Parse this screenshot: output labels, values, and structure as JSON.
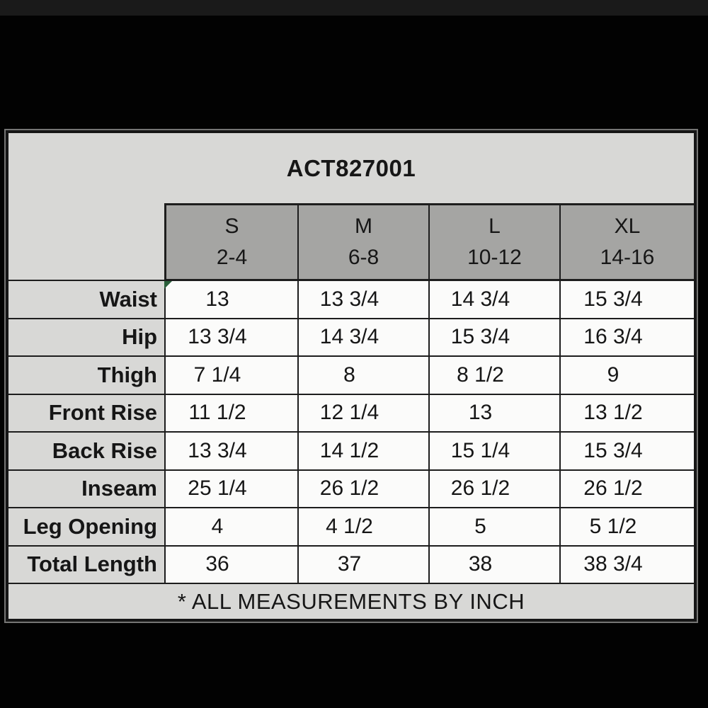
{
  "table": {
    "title": "ACT827001",
    "footnote": "* ALL MEASUREMENTS BY INCH",
    "columns": [
      {
        "size": "S",
        "range": "2-4"
      },
      {
        "size": "M",
        "range": "6-8"
      },
      {
        "size": "L",
        "range": "10-12"
      },
      {
        "size": "XL",
        "range": "14-16"
      }
    ],
    "rows": [
      {
        "label": "Waist",
        "values": [
          "13",
          "13 3/4",
          "14 3/4",
          "15 3/4"
        ]
      },
      {
        "label": "Hip",
        "values": [
          "13 3/4",
          "14 3/4",
          "15 3/4",
          "16 3/4"
        ]
      },
      {
        "label": "Thigh",
        "values": [
          "7 1/4",
          "8",
          "8 1/2",
          "9"
        ]
      },
      {
        "label": "Front Rise",
        "values": [
          "11 1/2",
          "12 1/4",
          "13",
          "13 1/2"
        ]
      },
      {
        "label": "Back Rise",
        "values": [
          "13 3/4",
          "14 1/2",
          "15 1/4",
          "15 3/4"
        ]
      },
      {
        "label": "Inseam",
        "values": [
          "25 1/4",
          "26 1/2",
          "26 1/2",
          "26 1/2"
        ]
      },
      {
        "label": "Leg Opening",
        "values": [
          "4",
          "4 1/2",
          "5",
          "5 1/2"
        ]
      },
      {
        "label": "Total Length",
        "values": [
          "36",
          "37",
          "38",
          "38 3/4"
        ]
      }
    ],
    "units_note": "INCH",
    "colors": {
      "page_background": "#020202",
      "panel_background": "#d8d8d6",
      "header_background": "#a5a5a3",
      "cell_background": "#fbfbfa",
      "grid_border": "#1d1d1d",
      "text": "#161616",
      "corner_marker": "#2a5f3a"
    }
  },
  "chart_data": {
    "type": "table",
    "title": "ACT827001",
    "columns": [
      "S 2-4",
      "M 6-8",
      "L 10-12",
      "XL 14-16"
    ],
    "rows": [
      "Waist",
      "Hip",
      "Thigh",
      "Front Rise",
      "Back Rise",
      "Inseam",
      "Leg Opening",
      "Total Length"
    ],
    "values": [
      [
        "13",
        "13 3/4",
        "14 3/4",
        "15 3/4"
      ],
      [
        "13 3/4",
        "14 3/4",
        "15 3/4",
        "16 3/4"
      ],
      [
        "7 1/4",
        "8",
        "8 1/2",
        "9"
      ],
      [
        "11 1/2",
        "12 1/4",
        "13",
        "13 1/2"
      ],
      [
        "13 3/4",
        "14 1/2",
        "15 1/4",
        "15 3/4"
      ],
      [
        "25 1/4",
        "26 1/2",
        "26 1/2",
        "26 1/2"
      ],
      [
        "4",
        "4 1/2",
        "5",
        "5 1/2"
      ],
      [
        "36",
        "37",
        "38",
        "38 3/4"
      ]
    ],
    "annotations": [
      "* ALL MEASUREMENTS BY INCH"
    ]
  }
}
